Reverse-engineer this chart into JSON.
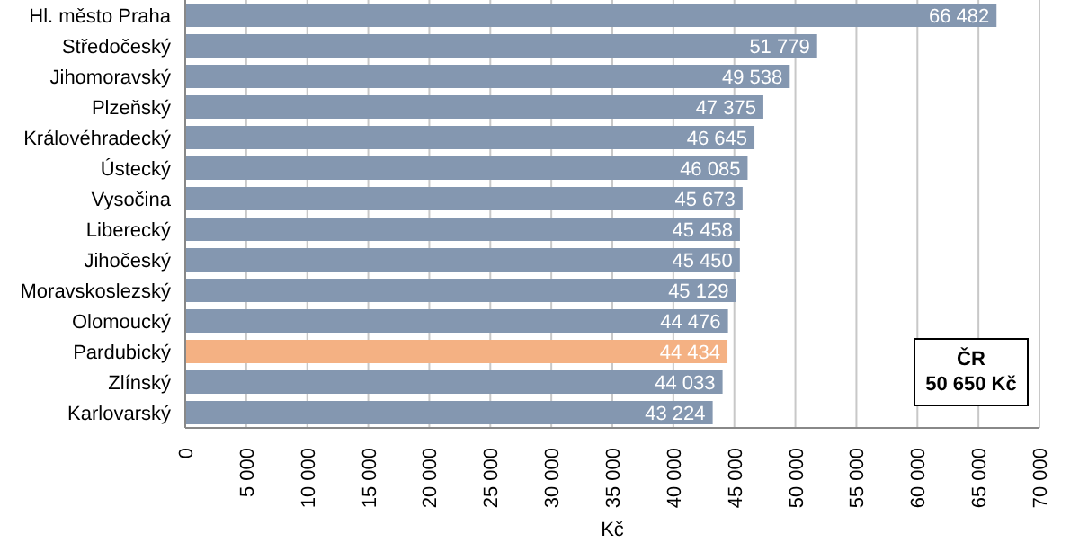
{
  "chart_data": {
    "type": "bar",
    "orientation": "horizontal",
    "xlabel": "Kč",
    "categories": [
      "Hl. město Praha",
      "Středočeský",
      "Jihomoravský",
      "Plzeňský",
      "Královéhradecký",
      "Ústecký",
      "Vysočina",
      "Liberecký",
      "Jihočeský",
      "Moravskoslezský",
      "Olomoucký",
      "Pardubický",
      "Zlínský",
      "Karlovarský"
    ],
    "values": [
      66482,
      51779,
      49538,
      47375,
      46645,
      46085,
      45673,
      45458,
      45450,
      45129,
      44476,
      44434,
      44033,
      43224
    ],
    "colors": [
      "#8497b0",
      "#8497b0",
      "#8497b0",
      "#8497b0",
      "#8497b0",
      "#8497b0",
      "#8497b0",
      "#8497b0",
      "#8497b0",
      "#8497b0",
      "#8497b0",
      "#f4b183",
      "#8497b0",
      "#8497b0"
    ],
    "xlim": [
      0,
      70000
    ],
    "xticks": [
      0,
      {
        "value": 5000,
        "label": "5 000"
      },
      {
        "value": 10000,
        "label": "10 000"
      },
      {
        "value": 15000,
        "label": "15 000"
      },
      {
        "value": 20000,
        "label": "20 000"
      },
      {
        "value": 25000,
        "label": "25 000"
      },
      {
        "value": 30000,
        "label": "30 000"
      },
      {
        "value": 35000,
        "label": "35 000"
      },
      {
        "value": 40000,
        "label": "40 000"
      },
      {
        "value": 45000,
        "label": "45 000"
      },
      {
        "value": 50000,
        "label": "50 000"
      },
      {
        "value": 55000,
        "label": "55 000"
      },
      {
        "value": 60000,
        "label": "60 000"
      },
      {
        "value": 65000,
        "label": "65 000"
      },
      {
        "value": 70000,
        "label": "70 000"
      }
    ],
    "grid": "x",
    "data_labels": true,
    "annotations": [
      "ČR\n50 650 Kč"
    ]
  }
}
